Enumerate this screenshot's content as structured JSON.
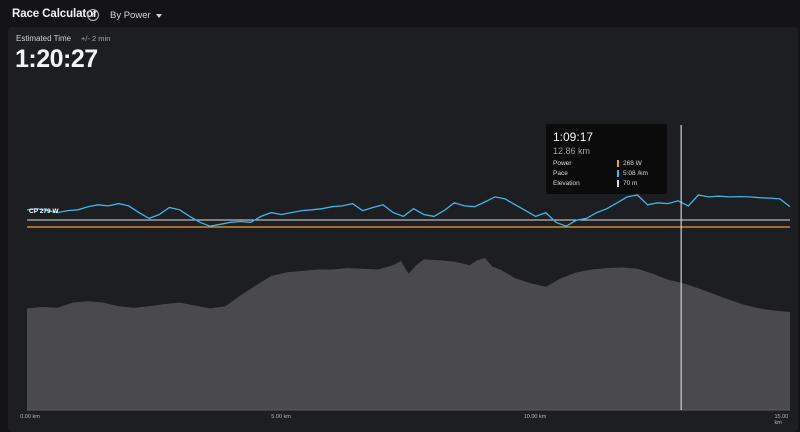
{
  "header": {
    "title": "Race Calculator",
    "mode": "By Power"
  },
  "estimate": {
    "label": "Estimated Time",
    "tolerance": "+/- 2 min",
    "time": "1:20:27"
  },
  "cp_label": "CP 279 W",
  "tooltip": {
    "time": "1:09:17",
    "distance": "12.86 km",
    "rows": [
      {
        "label": "Power",
        "value": "268 W",
        "color": "#f0a327"
      },
      {
        "label": "Pace",
        "value": "5:08 /km",
        "color": "#3fb6e6"
      },
      {
        "label": "Elevation",
        "value": "70 m",
        "color": "#d8d8dc"
      }
    ]
  },
  "chart_data": {
    "type": "line",
    "xlabel": "",
    "x_unit": "km",
    "xlim": [
      0,
      15
    ],
    "x_ticks": [
      "0.00 km",
      "5.00 km",
      "10.00 km",
      "15.00 km"
    ],
    "cursor_km": 12.86,
    "series": [
      {
        "name": "Pace",
        "color": "#3fb6e6",
        "x": [
          0,
          0.2,
          0.4,
          0.6,
          0.8,
          1.0,
          1.2,
          1.4,
          1.6,
          1.8,
          2.0,
          2.2,
          2.4,
          2.6,
          2.8,
          3.0,
          3.2,
          3.4,
          3.6,
          3.8,
          4.0,
          4.2,
          4.4,
          4.6,
          4.8,
          5.0,
          5.2,
          5.4,
          5.6,
          5.8,
          6.0,
          6.2,
          6.4,
          6.6,
          6.8,
          7.0,
          7.2,
          7.4,
          7.6,
          7.8,
          8.0,
          8.2,
          8.4,
          8.6,
          8.8,
          9.0,
          9.2,
          9.4,
          9.6,
          9.8,
          10.0,
          10.2,
          10.4,
          10.6,
          10.8,
          11.0,
          11.2,
          11.4,
          11.6,
          11.8,
          12.0,
          12.2,
          12.4,
          12.6,
          12.8,
          13.0,
          13.2,
          13.4,
          13.6,
          13.8,
          14.0,
          14.2,
          14.4,
          14.6,
          14.8,
          15.0
        ],
        "y": [
          0.62,
          0.65,
          0.6,
          0.55,
          0.6,
          0.62,
          0.7,
          0.75,
          0.72,
          0.78,
          0.72,
          0.55,
          0.4,
          0.5,
          0.68,
          0.62,
          0.45,
          0.3,
          0.2,
          0.25,
          0.3,
          0.32,
          0.3,
          0.45,
          0.55,
          0.5,
          0.55,
          0.6,
          0.62,
          0.65,
          0.7,
          0.72,
          0.78,
          0.6,
          0.68,
          0.75,
          0.55,
          0.45,
          0.65,
          0.5,
          0.45,
          0.6,
          0.8,
          0.72,
          0.7,
          0.82,
          0.95,
          0.9,
          0.75,
          0.6,
          0.45,
          0.55,
          0.3,
          0.2,
          0.35,
          0.4,
          0.55,
          0.65,
          0.8,
          0.95,
          1.0,
          0.75,
          0.8,
          0.78,
          0.85,
          0.72,
          1.0,
          0.95,
          0.97,
          0.95,
          0.96,
          0.95,
          0.93,
          0.92,
          0.9,
          0.7
        ]
      },
      {
        "name": "Elevation",
        "color": "#4a4a4e",
        "x": [
          0,
          0.3,
          0.6,
          0.9,
          1.2,
          1.5,
          1.8,
          2.1,
          2.4,
          2.7,
          3.0,
          3.3,
          3.6,
          3.9,
          4.2,
          4.5,
          4.8,
          5.1,
          5.4,
          5.7,
          6.0,
          6.3,
          6.6,
          6.9,
          7.2,
          7.35,
          7.5,
          7.65,
          7.8,
          8.1,
          8.4,
          8.7,
          8.85,
          9.0,
          9.15,
          9.3,
          9.6,
          9.9,
          10.2,
          10.5,
          10.8,
          11.1,
          11.4,
          11.7,
          12.0,
          12.3,
          12.6,
          12.9,
          13.2,
          13.5,
          13.8,
          14.1,
          14.4,
          14.7,
          15.0
        ],
        "y": [
          0.3,
          0.32,
          0.31,
          0.38,
          0.4,
          0.38,
          0.33,
          0.31,
          0.33,
          0.36,
          0.38,
          0.34,
          0.3,
          0.33,
          0.48,
          0.62,
          0.75,
          0.8,
          0.82,
          0.84,
          0.84,
          0.86,
          0.85,
          0.84,
          0.9,
          0.96,
          0.78,
          0.9,
          0.98,
          0.97,
          0.95,
          0.9,
          0.97,
          1.0,
          0.88,
          0.84,
          0.72,
          0.65,
          0.6,
          0.72,
          0.8,
          0.84,
          0.86,
          0.87,
          0.85,
          0.78,
          0.7,
          0.65,
          0.58,
          0.5,
          0.42,
          0.35,
          0.3,
          0.27,
          0.25
        ]
      }
    ],
    "reference_lines": [
      {
        "name": "CP",
        "value": 279,
        "color": "#ffffff"
      },
      {
        "name": "Target Power",
        "value": 268,
        "color": "#f0a327"
      }
    ]
  }
}
